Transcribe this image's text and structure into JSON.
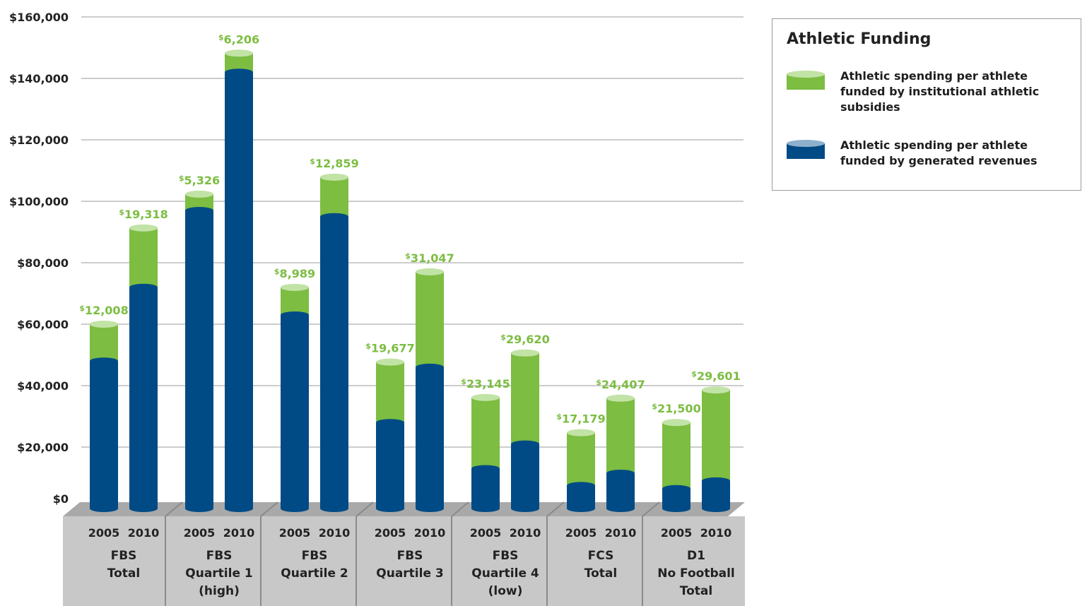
{
  "chart_data": {
    "type": "bar",
    "stacked": true,
    "title": "",
    "xlabel": "",
    "ylabel": "",
    "ylim": [
      0,
      160000
    ],
    "y_ticks": [
      "$0",
      "$20,000",
      "$40,000",
      "$60,000",
      "$80,000",
      "$100,000",
      "$120,000",
      "$140,000",
      "$160,000"
    ],
    "grid": true,
    "legend_position": "top-right",
    "groups": [
      {
        "label_lines": [
          "FBS",
          "Total"
        ],
        "years": [
          "2005",
          "2010"
        ]
      },
      {
        "label_lines": [
          "FBS",
          "Quartile 1",
          "(high)"
        ],
        "years": [
          "2005",
          "2010"
        ]
      },
      {
        "label_lines": [
          "FBS",
          "Quartile 2"
        ],
        "years": [
          "2005",
          "2010"
        ]
      },
      {
        "label_lines": [
          "FBS",
          "Quartile 3"
        ],
        "years": [
          "2005",
          "2010"
        ]
      },
      {
        "label_lines": [
          "FBS",
          "Quartile 4",
          "(low)"
        ],
        "years": [
          "2005",
          "2010"
        ]
      },
      {
        "label_lines": [
          "FCS",
          "Total"
        ],
        "years": [
          "2005",
          "2010"
        ]
      },
      {
        "label_lines": [
          "D1",
          "No Football",
          "Total"
        ],
        "years": [
          "2005",
          "2010"
        ]
      }
    ],
    "series": [
      {
        "name": "Athletic spending per athlete funded by generated revenues",
        "color": "#004b85",
        "values": [
          48000,
          72000,
          97000,
          142000,
          63000,
          95000,
          28000,
          46000,
          13000,
          21000,
          7500,
          11500,
          6500,
          9000
        ]
      },
      {
        "name": "Athletic spending per athlete funded by institutional athletic subsidies",
        "color": "#7cbd42",
        "values": [
          12008,
          19318,
          5326,
          6206,
          8989,
          12859,
          19677,
          31047,
          23145,
          29620,
          17179,
          24407,
          21500,
          29601
        ]
      }
    ],
    "data_labels": [
      "12,008",
      "19,318",
      "5,326",
      "6,206",
      "8,989",
      "12,859",
      "19,677",
      "31,047",
      "23,145",
      "29,620",
      "17,179",
      "24,407",
      "21,500",
      "29,601"
    ],
    "currency_symbol": "$"
  },
  "legend": {
    "title": "Athletic Funding",
    "items": [
      {
        "label": "Athletic spending per athlete funded by institutional athletic subsidies",
        "color": "#7cbd42",
        "top_color": "#bfe3a0"
      },
      {
        "label": "Athletic spending per athlete funded by generated revenues",
        "color": "#004b85",
        "top_color": "#8fb0cd"
      }
    ]
  },
  "colors": {
    "revenue": "#004b85",
    "subsidy": "#7cbd42",
    "subsidy_top": "#c2e3a6",
    "floor_top": "#a9a9a9",
    "floor_front": "#c8c8c8",
    "grid": "#9a9a9a"
  }
}
